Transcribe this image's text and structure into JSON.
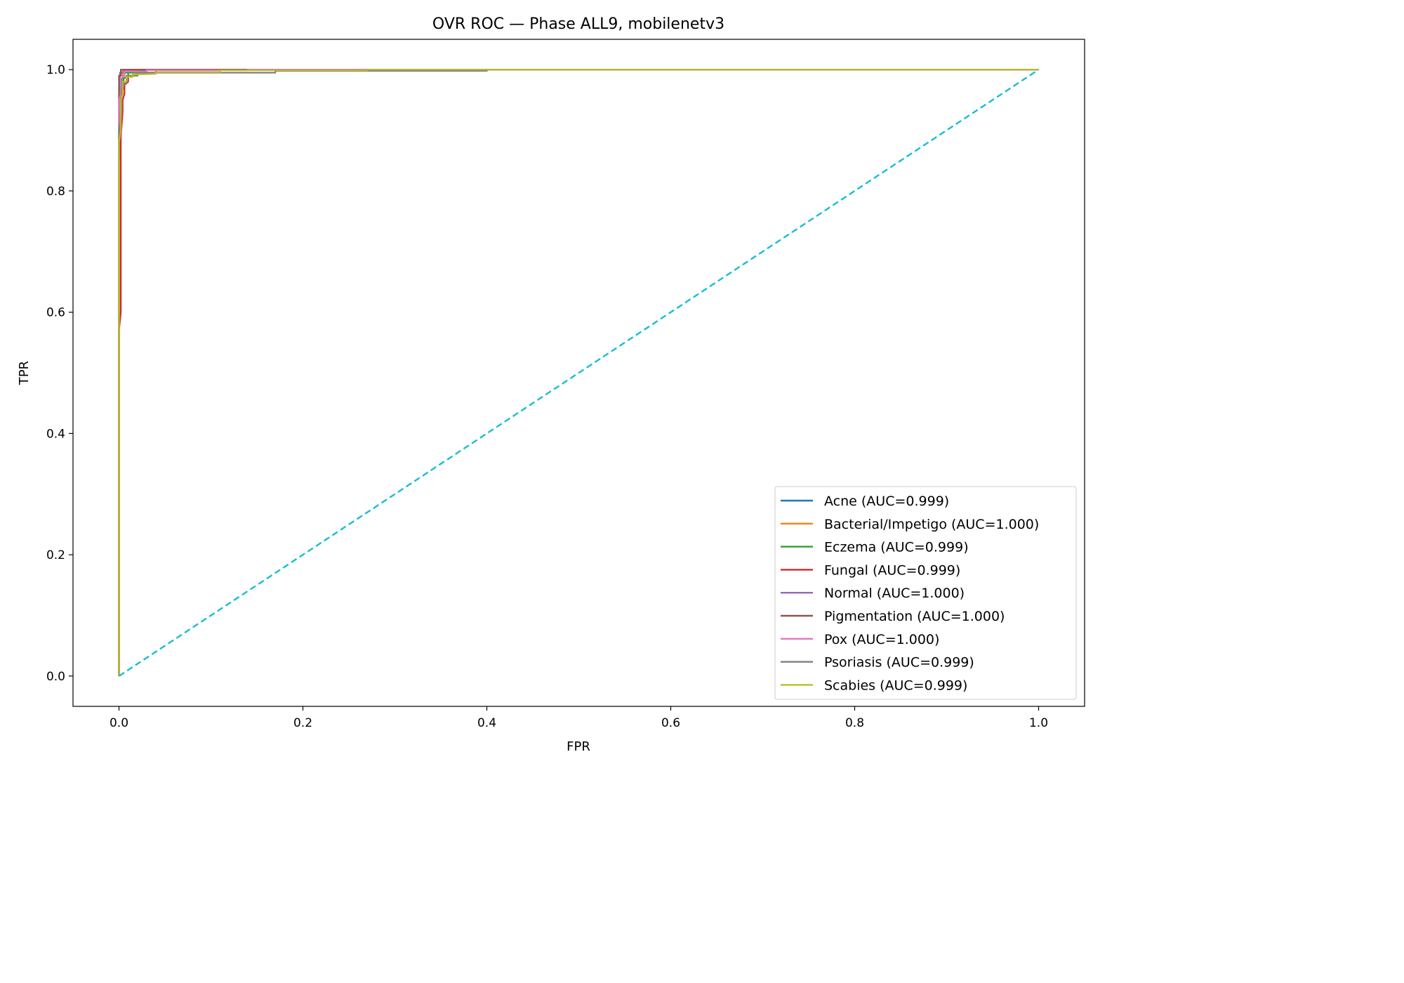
{
  "chart_data": {
    "type": "line",
    "title": "OVR ROC — Phase ALL9, mobilenetv3",
    "xlabel": "FPR",
    "ylabel": "TPR",
    "xlim": [
      -0.05,
      1.05
    ],
    "ylim": [
      -0.05,
      1.05
    ],
    "xticks": [
      0.0,
      0.2,
      0.4,
      0.6,
      0.8,
      1.0
    ],
    "yticks": [
      0.0,
      0.2,
      0.4,
      0.6,
      0.8,
      1.0
    ],
    "xtick_labels": [
      "0.0",
      "0.2",
      "0.4",
      "0.6",
      "0.8",
      "1.0"
    ],
    "ytick_labels": [
      "0.0",
      "0.2",
      "0.4",
      "0.6",
      "0.8",
      "1.0"
    ],
    "grid": false,
    "legend_position": "lower-right",
    "series": [
      {
        "name": "Acne (AUC=0.999)",
        "color": "#1f77b4",
        "x": [
          0,
          0,
          0.001,
          0.001,
          0.003,
          0.003,
          0.006,
          0.006,
          0.012,
          0.012,
          0.03,
          0.03,
          1.0
        ],
        "y": [
          0,
          0.85,
          0.88,
          0.95,
          0.96,
          0.985,
          0.99,
          0.995,
          0.995,
          0.998,
          0.998,
          1.0,
          1.0
        ]
      },
      {
        "name": "Bacterial/Impetigo (AUC=1.000)",
        "color": "#ff7f0e",
        "x": [
          0,
          0,
          0.001,
          0.001,
          0.004,
          0.004,
          0.02,
          0.02,
          1.0
        ],
        "y": [
          0,
          0.93,
          0.96,
          0.99,
          0.99,
          0.998,
          0.998,
          1.0,
          1.0
        ]
      },
      {
        "name": "Eczema (AUC=0.999)",
        "color": "#2ca02c",
        "x": [
          0,
          0,
          0.002,
          0.002,
          0.005,
          0.005,
          0.01,
          0.01,
          0.025,
          0.025,
          1.0
        ],
        "y": [
          0,
          0.88,
          0.9,
          0.96,
          0.97,
          0.985,
          0.99,
          0.995,
          0.995,
          1.0,
          1.0
        ]
      },
      {
        "name": "Fungal (AUC=0.999)",
        "color": "#d62728",
        "x": [
          0,
          0,
          0.002,
          0.002,
          0.004,
          0.004,
          0.006,
          0.006,
          0.01,
          0.01,
          0.02,
          0.02,
          0.04,
          0.04,
          1.0
        ],
        "y": [
          0,
          0.57,
          0.6,
          0.89,
          0.93,
          0.95,
          0.96,
          0.975,
          0.98,
          0.99,
          0.99,
          0.995,
          0.995,
          1.0,
          1.0
        ]
      },
      {
        "name": "Normal (AUC=1.000)",
        "color": "#9467bd",
        "x": [
          0,
          0,
          0.001,
          0.001,
          0.005,
          0.005,
          1.0
        ],
        "y": [
          0,
          0.96,
          0.98,
          0.995,
          0.995,
          1.0,
          1.0
        ]
      },
      {
        "name": "Pigmentation (AUC=1.000)",
        "color": "#8c564b",
        "x": [
          0,
          0,
          0.002,
          0.002,
          1.0
        ],
        "y": [
          0,
          0.99,
          0.99,
          1.0,
          1.0
        ]
      },
      {
        "name": "Pox (AUC=1.000)",
        "color": "#e377c2",
        "x": [
          0,
          0,
          0.002,
          0.002,
          0.006,
          0.006,
          0.03,
          0.03,
          0.14,
          0.14,
          1.0
        ],
        "y": [
          0,
          0.95,
          0.96,
          0.985,
          0.99,
          0.997,
          0.997,
          0.999,
          0.999,
          1.0,
          1.0
        ]
      },
      {
        "name": "Psoriasis (AUC=0.999)",
        "color": "#7f7f7f",
        "x": [
          0,
          0,
          0.003,
          0.003,
          0.008,
          0.008,
          0.02,
          0.02,
          0.17,
          0.17,
          0.4,
          0.4,
          1.0
        ],
        "y": [
          0,
          0.9,
          0.93,
          0.97,
          0.98,
          0.99,
          0.99,
          0.995,
          0.995,
          0.998,
          0.998,
          1.0,
          1.0
        ]
      },
      {
        "name": "Scabies (AUC=0.999)",
        "color": "#bcbd22",
        "x": [
          0,
          0,
          0.002,
          0.002,
          0.004,
          0.004,
          0.008,
          0.008,
          0.015,
          0.015,
          0.04,
          0.04,
          0.11,
          0.11,
          0.27,
          0.27,
          1.0
        ],
        "y": [
          0,
          0.88,
          0.9,
          0.95,
          0.96,
          0.98,
          0.98,
          0.988,
          0.988,
          0.992,
          0.993,
          0.996,
          0.996,
          0.999,
          0.999,
          1.0,
          1.0
        ]
      }
    ],
    "reference_line": {
      "x": [
        0,
        1
      ],
      "y": [
        0,
        1
      ],
      "color": "#17becf",
      "style": "dashed"
    }
  }
}
